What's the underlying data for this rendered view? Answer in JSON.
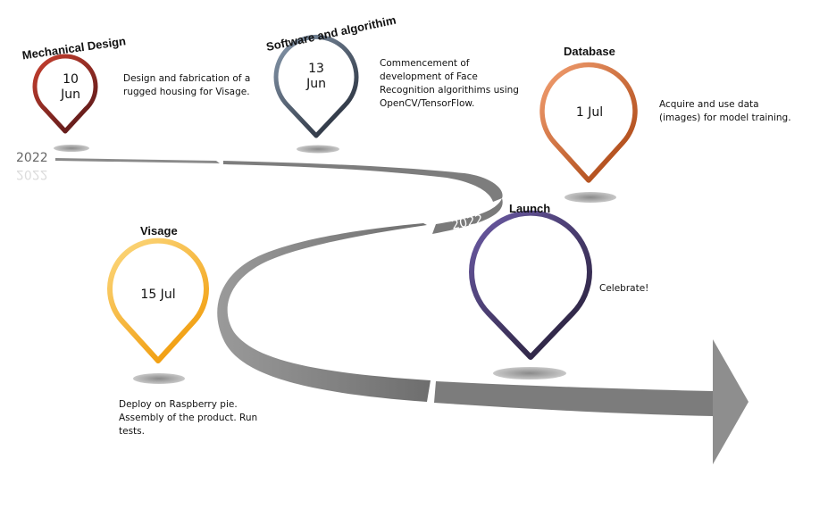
{
  "milestones": {
    "mechanical": {
      "title": "Mechanical Design",
      "date_line1": "10",
      "date_line2": "Jun",
      "desc": [
        "Design and fabrication of a",
        "rugged housing for Visage."
      ]
    },
    "software": {
      "title": "Software and algorithim",
      "date_line1": "13",
      "date_line2": "Jun",
      "desc": [
        "Commencement of",
        "development of Face",
        "Recognition algorithims using",
        "OpenCV/TensorFlow."
      ]
    },
    "database": {
      "title": "Database",
      "date": "1 Jul",
      "desc": [
        "Acquire and use data",
        "(images) for model training."
      ]
    },
    "visage": {
      "title": "Visage",
      "date": "15 Jul",
      "desc": [
        "Deploy on Raspberry pie.",
        "Assembly of the product. Run",
        "tests."
      ]
    },
    "launch": {
      "title": "Launch",
      "desc": [
        "Celebrate!"
      ]
    }
  },
  "years": {
    "start": "2022",
    "curve": "2022"
  },
  "colors": {
    "mechanical": [
      "#c0392b",
      "#6b1d1d"
    ],
    "software": [
      "#8294a8",
      "#2c3444"
    ],
    "database": [
      "#f08c4e",
      "#b24a18"
    ],
    "visage": [
      "#fbd57a",
      "#f2a71a"
    ],
    "launch": [
      "#6a58a0",
      "#2e2543"
    ],
    "road": "#8a8a8a"
  }
}
